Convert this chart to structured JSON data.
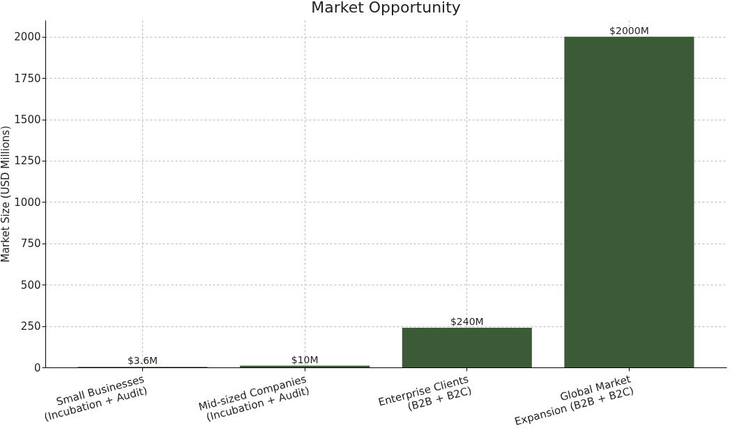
{
  "chart_data": {
    "type": "bar",
    "title": "Market Opportunity",
    "ylabel": "Market Size (USD Millions)",
    "categories": [
      "Small Businesses\n(Incubation + Audit)",
      "Mid-sized Companies\n(Incubation + Audit)",
      "Enterprise Clients\n(B2B + B2C)",
      "Global Market\nExpansion (B2B + B2C)"
    ],
    "values": [
      3.6,
      10,
      240,
      2000
    ],
    "value_labels": [
      "$3.6M",
      "$10M",
      "$240M",
      "$2000M"
    ],
    "color": "#3b5a36",
    "ylim": [
      0,
      2100
    ],
    "yticks": [
      0,
      250,
      500,
      750,
      1000,
      1250,
      1500,
      1750,
      2000
    ],
    "grid": true
  }
}
